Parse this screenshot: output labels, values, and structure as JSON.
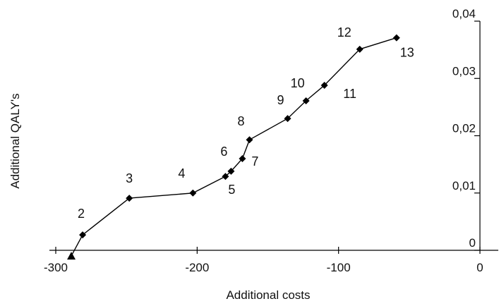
{
  "chart_data": {
    "type": "line",
    "title": "",
    "xlabel": "Additional costs",
    "ylabel": "Additional QALY's",
    "xlim": [
      -300,
      0
    ],
    "ylim": [
      0,
      0.04
    ],
    "x_ticks": [
      -300,
      -200,
      -100,
      0
    ],
    "x_tick_labels": [
      "-300",
      "-200",
      "-100",
      "0"
    ],
    "y_ticks": [
      0,
      0.01,
      0.02,
      0.03,
      0.04
    ],
    "y_tick_labels": [
      "0",
      "0,01",
      "0,02",
      "0,03",
      "0,04"
    ],
    "y_axis_side": "right",
    "grid": false,
    "series": [
      {
        "marker": "diamond",
        "points": [
          {
            "x": -289,
            "y": -0.001,
            "label": ""
          },
          {
            "x": -281,
            "y": 0.0027,
            "label": "2"
          },
          {
            "x": -248,
            "y": 0.0091,
            "label": "3"
          },
          {
            "x": -203,
            "y": 0.01,
            "label": "4"
          },
          {
            "x": -180,
            "y": 0.0129,
            "label": "5"
          },
          {
            "x": -176,
            "y": 0.0138,
            "label": "6"
          },
          {
            "x": -168,
            "y": 0.016,
            "label": "7"
          },
          {
            "x": -163,
            "y": 0.0193,
            "label": "8"
          },
          {
            "x": -136,
            "y": 0.023,
            "label": "9"
          },
          {
            "x": -123,
            "y": 0.0261,
            "label": "10"
          },
          {
            "x": -110,
            "y": 0.0288,
            "label": "11"
          },
          {
            "x": -85,
            "y": 0.0351,
            "label": "12"
          },
          {
            "x": -59,
            "y": 0.0371,
            "label": "13"
          }
        ]
      }
    ]
  }
}
